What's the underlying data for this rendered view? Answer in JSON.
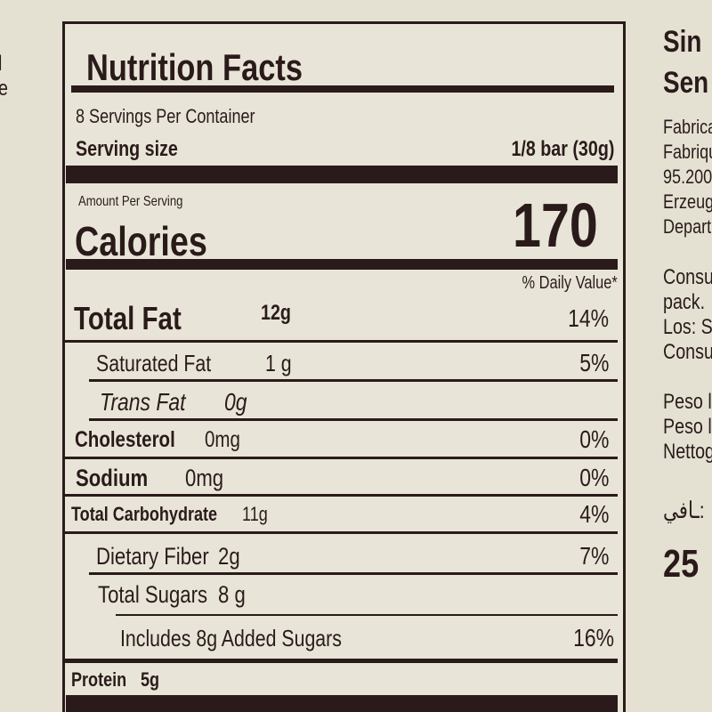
{
  "left_edge": [
    "l",
    "e"
  ],
  "label": {
    "title": "Nutrition Facts",
    "servings": "8 Servings Per Container",
    "serving_size_label": "Serving size",
    "serving_size_value": "1/8 bar (30g)",
    "amount_per_serving": "Amount Per Serving",
    "calories_label": "Calories",
    "calories_value": "170",
    "daily_value_header": "% Daily Value*",
    "rows": [
      {
        "name": "Total Fat",
        "amount": "12g",
        "dv": "14%"
      },
      {
        "name": "Saturated Fat",
        "amount": "1 g",
        "dv": "5%"
      },
      {
        "name": "Trans Fat",
        "amount": "0g"
      },
      {
        "name": "Cholesterol",
        "amount": "0mg",
        "dv": "0%"
      },
      {
        "name": "Sodium",
        "amount": "0mg",
        "dv": "0%"
      },
      {
        "name": "Total Carbohydrate",
        "amount": "11g",
        "dv": "4%"
      },
      {
        "name": "Dietary Fiber",
        "amount": "2g",
        "dv": "7%"
      },
      {
        "name": "Total Sugars",
        "amount": "8 g"
      },
      {
        "name": "Includes 8g Added Sugars",
        "dv": "16%"
      },
      {
        "name": "Protein",
        "amount": "5g"
      }
    ]
  },
  "side_text": [
    "Sin",
    "Sen",
    "Fabrica",
    "Fabrique",
    "95.200",
    "Erzeug",
    "Depart",
    "Consu",
    "pack.",
    "Los: S",
    "Consu",
    "Peso l",
    "Peso l",
    "Nettog",
    "ـافي:",
    "25"
  ]
}
